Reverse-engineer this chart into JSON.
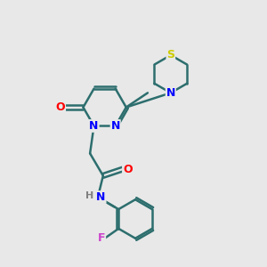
{
  "background_color": "#e8e8e8",
  "bond_color": "#2d6e6e",
  "bond_width": 1.8,
  "atom_colors": {
    "N": "#0000ff",
    "O": "#ff0000",
    "S": "#cccc00",
    "F": "#cc44cc",
    "H": "#808080",
    "C": "#000000"
  },
  "font_size": 9,
  "figsize": [
    3.0,
    3.0
  ],
  "dpi": 100
}
